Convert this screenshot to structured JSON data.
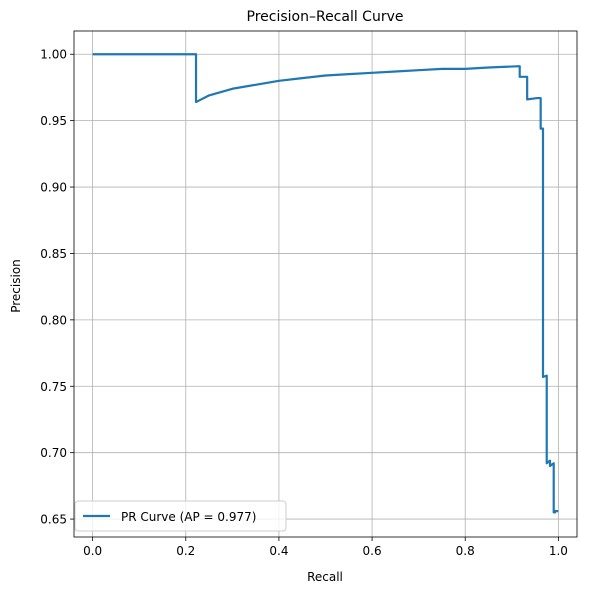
{
  "chart_data": {
    "type": "line",
    "title": "Precision–Recall Curve",
    "xlabel": "Recall",
    "ylabel": "Precision",
    "xlim": [
      -0.04,
      1.04
    ],
    "ylim": [
      0.6365,
      1.0175
    ],
    "x_ticks": [
      0.0,
      0.2,
      0.4,
      0.6,
      0.8,
      1.0
    ],
    "x_tick_labels": [
      "0.0",
      "0.2",
      "0.4",
      "0.6",
      "0.8",
      "1.0"
    ],
    "y_ticks": [
      0.65,
      0.7,
      0.75,
      0.8,
      0.85,
      0.9,
      0.95,
      1.0
    ],
    "y_tick_labels": [
      "0.65",
      "0.70",
      "0.75",
      "0.80",
      "0.85",
      "0.90",
      "0.95",
      "1.00"
    ],
    "grid": true,
    "legend_position": "lower-left",
    "series": [
      {
        "name": "PR Curve (AP = 0.977)",
        "color": "#1f77b4",
        "x": [
          0.0,
          0.222,
          0.222,
          0.25,
          0.3,
          0.35,
          0.4,
          0.45,
          0.5,
          0.55,
          0.6,
          0.65,
          0.7,
          0.75,
          0.8,
          0.85,
          0.917,
          0.917,
          0.933,
          0.933,
          0.955,
          0.955,
          0.962,
          0.962,
          0.967,
          0.967,
          0.975,
          0.975,
          0.982,
          0.982,
          0.99,
          0.99,
          0.993,
          0.993,
          1.0
        ],
        "y": [
          1.0,
          1.0,
          0.964,
          0.969,
          0.974,
          0.977,
          0.98,
          0.982,
          0.984,
          0.985,
          0.986,
          0.987,
          0.988,
          0.989,
          0.989,
          0.99,
          0.991,
          0.983,
          0.983,
          0.966,
          0.967,
          0.967,
          0.967,
          0.944,
          0.944,
          0.757,
          0.758,
          0.692,
          0.694,
          0.69,
          0.692,
          0.655,
          0.655,
          0.656,
          0.656
        ]
      }
    ]
  }
}
